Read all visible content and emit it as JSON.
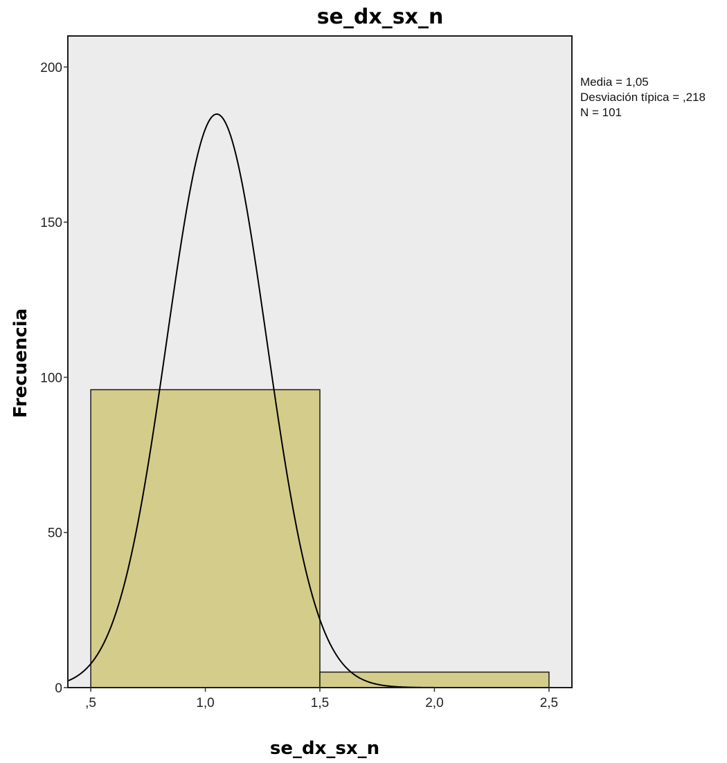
{
  "chart_data": {
    "type": "bar",
    "subtype": "histogram",
    "title": "se_dx_sx_n",
    "xlabel": "se_dx_sx_n",
    "ylabel": "Frecuencia",
    "xlim": [
      0.4,
      2.6
    ],
    "ylim": [
      0,
      210
    ],
    "x_ticks": [
      {
        "value": 0.5,
        "label": ",5"
      },
      {
        "value": 1.0,
        "label": "1,0"
      },
      {
        "value": 1.5,
        "label": "1,5"
      },
      {
        "value": 2.0,
        "label": "2,0"
      },
      {
        "value": 2.5,
        "label": "2,5"
      }
    ],
    "y_ticks": [
      {
        "value": 0,
        "label": "0"
      },
      {
        "value": 50,
        "label": "50"
      },
      {
        "value": 100,
        "label": "100"
      },
      {
        "value": 150,
        "label": "150"
      },
      {
        "value": 200,
        "label": "200"
      }
    ],
    "bins": [
      {
        "start": 0.5,
        "end": 1.5,
        "count": 96
      },
      {
        "start": 1.5,
        "end": 2.5,
        "count": 5
      }
    ],
    "normal_curve": {
      "mean": 1.05,
      "sd": 0.218,
      "n": 101,
      "bin_width": 1.0
    },
    "stats": [
      "Media = 1,05",
      "Desviación típica = ,218",
      "N = 101"
    ],
    "grid": false,
    "legend_placement": "top-right",
    "colors": {
      "bar_fill": "#d4cc8a",
      "bar_stroke": "#1a1a1a",
      "curve": "#000000",
      "plot_background": "#ececec",
      "frame": "#1a1a1a"
    }
  }
}
